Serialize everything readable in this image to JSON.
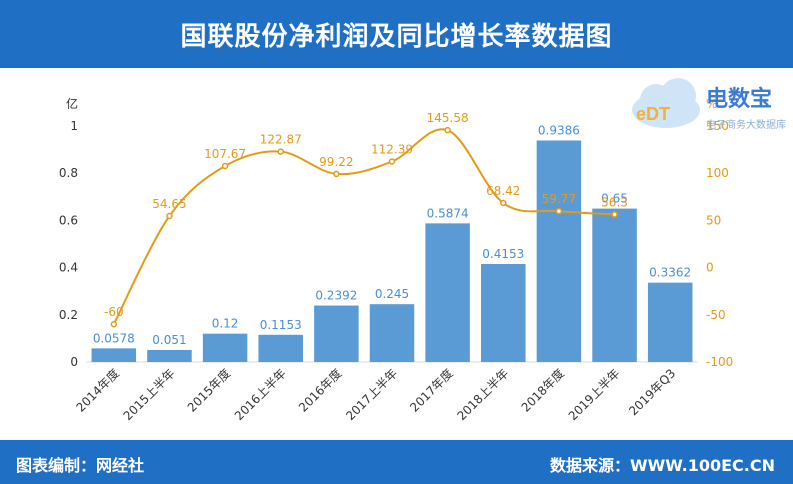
{
  "header": {
    "title": "国联股份净利润及同比增长率数据图"
  },
  "footer": {
    "left_text": "图表编制：网经社",
    "right_text": "数据来源：WWW.100EC.CN"
  },
  "logo": {
    "brand_text": "电数宝",
    "sub_text": "电子商务大数据库",
    "badge_text": "eDT"
  },
  "colors": {
    "bar": "#5b9bd5",
    "line": "#e59a17",
    "header": "#1f6fc5"
  },
  "chart_data": {
    "type": "bar+line",
    "categories": [
      "2014年度",
      "2015上半年",
      "2015年度",
      "2016上半年",
      "2016年度",
      "2017上半年",
      "2017年度",
      "2018上半年",
      "2018年度",
      "2019上半年",
      "2019年Q3"
    ],
    "series": [
      {
        "type": "bar",
        "axis": "left",
        "values": [
          0.0578,
          0.051,
          0.12,
          0.1153,
          0.2392,
          0.245,
          0.5874,
          0.4153,
          0.9386,
          0.65,
          0.3362
        ],
        "labels": [
          "0.0578",
          "0.051",
          "0.12",
          "0.1153",
          "0.2392",
          "0.245",
          "0.5874",
          "0.4153",
          "0.9386",
          "0.65",
          "0.3362"
        ]
      },
      {
        "type": "line",
        "axis": "right",
        "values": [
          -60,
          54.65,
          107.67,
          122.87,
          99.22,
          112.39,
          145.58,
          68.42,
          59.77,
          56.3,
          null
        ],
        "labels": [
          "-60",
          "54.65",
          "107.67",
          "122.87",
          "99.22",
          "112.39",
          "145.58",
          "68.42",
          "59.77",
          "56.3",
          ""
        ]
      }
    ],
    "left_axis": {
      "unit": "亿",
      "min": 0,
      "max": 1,
      "ticks": [
        0,
        0.2,
        0.4,
        0.6,
        0.8,
        1
      ],
      "tick_labels": [
        "0",
        "0.2",
        "0.4",
        "0.6",
        "0.8",
        "1"
      ]
    },
    "right_axis": {
      "unit": "%",
      "min": -100,
      "max": 150,
      "ticks": [
        -100,
        -50,
        0,
        50,
        100,
        150
      ],
      "tick_labels": [
        "-100",
        "-50",
        "0",
        "50",
        "100",
        "150"
      ]
    },
    "grid": false,
    "legend": "none"
  }
}
